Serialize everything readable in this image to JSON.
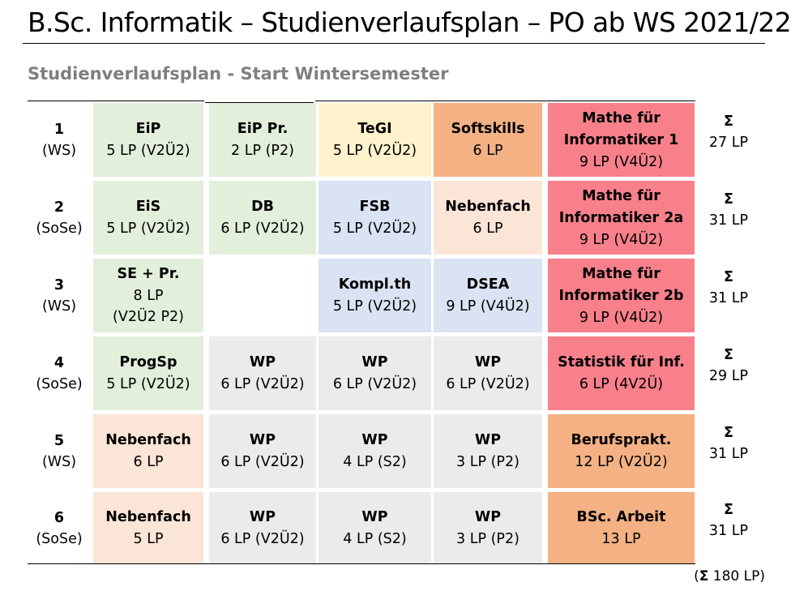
{
  "header": {
    "title": "B.Sc. Informatik – Studienverlaufsplan – PO ab WS 2021/22",
    "subtitle": "Studienverlaufsplan - Start Wintersemester"
  },
  "colors": {
    "green": "#e2efda",
    "yellow": "#fff2cc",
    "orange": "#f4b183",
    "peach": "#fbe5d6",
    "red": "#f8808b",
    "blue": "#dae3f3",
    "gray": "#ebebeb"
  },
  "semesters": [
    {
      "number": "1",
      "term": "(WS)",
      "sigma": "Σ",
      "credits": "27 LP"
    },
    {
      "number": "2",
      "term": "(SoSe)",
      "sigma": "Σ",
      "credits": "31 LP"
    },
    {
      "number": "3",
      "term": "(WS)",
      "sigma": "Σ",
      "credits": "31 LP"
    },
    {
      "number": "4",
      "term": "(SoSe)",
      "sigma": "Σ",
      "credits": "29 LP"
    },
    {
      "number": "5",
      "term": "(WS)",
      "sigma": "Σ",
      "credits": "31 LP"
    },
    {
      "number": "6",
      "term": "(SoSe)",
      "sigma": "Σ",
      "credits": "31 LP"
    }
  ],
  "courses": [
    [
      {
        "name": "EiP",
        "lines": [
          "5 LP (V2Ü2)"
        ],
        "color": "green"
      },
      {
        "name": "EiP Pr.",
        "lines": [
          "2 LP (P2)"
        ],
        "color": "green"
      },
      {
        "name": "TeGI",
        "lines": [
          "5 LP (V2Ü2)"
        ],
        "color": "yellow"
      },
      {
        "name": "Softskills",
        "lines": [
          "6 LP"
        ],
        "color": "orange"
      },
      {
        "name": "Mathe für\nInformatiker 1",
        "lines": [
          "9 LP (V4Ü2)"
        ],
        "color": "red"
      }
    ],
    [
      {
        "name": "EiS",
        "lines": [
          "5 LP (V2Ü2)"
        ],
        "color": "green"
      },
      {
        "name": "DB",
        "lines": [
          "6 LP (V2Ü2)"
        ],
        "color": "green"
      },
      {
        "name": "FSB",
        "lines": [
          "5 LP (V2Ü2)"
        ],
        "color": "blue"
      },
      {
        "name": "Nebenfach",
        "lines": [
          "6 LP"
        ],
        "color": "peach"
      },
      {
        "name": "Mathe für\nInformatiker 2a",
        "lines": [
          "9 LP (V4Ü2)"
        ],
        "color": "red"
      }
    ],
    [
      {
        "name": "SE + Pr.",
        "lines": [
          "8 LP",
          "(V2Ü2 P2)"
        ],
        "color": "green"
      },
      null,
      {
        "name": "Kompl.th",
        "lines": [
          "5 LP (V2Ü2)"
        ],
        "color": "blue"
      },
      {
        "name": "DSEA",
        "lines": [
          "9 LP (V4Ü2)"
        ],
        "color": "blue"
      },
      {
        "name": "Mathe für\nInformatiker 2b",
        "lines": [
          "9 LP (V4Ü2)"
        ],
        "color": "red"
      }
    ],
    [
      {
        "name": "ProgSp",
        "lines": [
          "5 LP (V2Ü2)"
        ],
        "color": "green"
      },
      {
        "name": "WP",
        "lines": [
          "6 LP (V2Ü2)"
        ],
        "color": "gray"
      },
      {
        "name": "WP",
        "lines": [
          "6 LP (V2Ü2)"
        ],
        "color": "gray"
      },
      {
        "name": "WP",
        "lines": [
          "6 LP (V2Ü2)"
        ],
        "color": "gray"
      },
      {
        "name": "Statistik für Inf.",
        "lines": [
          "6 LP (4V2Ü)"
        ],
        "color": "red"
      }
    ],
    [
      {
        "name": "Nebenfach",
        "lines": [
          "6 LP"
        ],
        "color": "peach"
      },
      {
        "name": "WP",
        "lines": [
          "6 LP (V2Ü2)"
        ],
        "color": "gray"
      },
      {
        "name": "WP",
        "lines": [
          "4 LP (S2)"
        ],
        "color": "gray"
      },
      {
        "name": "WP",
        "lines": [
          "3 LP (P2)"
        ],
        "color": "gray"
      },
      {
        "name": "Berufsprakt.",
        "lines": [
          "12 LP (V2Ü2)"
        ],
        "color": "orange"
      }
    ],
    [
      {
        "name": "Nebenfach",
        "lines": [
          "5 LP"
        ],
        "color": "peach"
      },
      {
        "name": "WP",
        "lines": [
          "6 LP (V2Ü2)"
        ],
        "color": "gray"
      },
      {
        "name": "WP",
        "lines": [
          "4 LP (S2)"
        ],
        "color": "gray"
      },
      {
        "name": "WP",
        "lines": [
          "3 LP (P2)"
        ],
        "color": "gray"
      },
      {
        "name": "BSc. Arbeit",
        "lines": [
          "13 LP"
        ],
        "color": "orange"
      }
    ]
  ],
  "footer": {
    "open": "(",
    "sigma": "Σ",
    "text": " 180 LP)"
  }
}
